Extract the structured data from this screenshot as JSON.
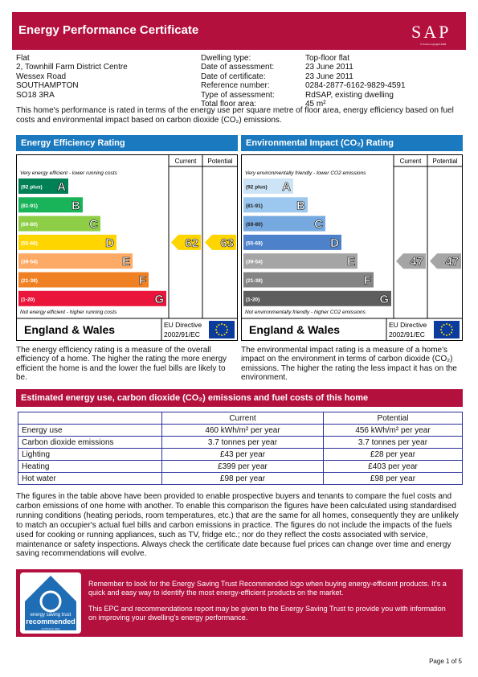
{
  "header": {
    "title": "Energy Performance Certificate",
    "logo": "SAP",
    "logo_note": "© Crown copyright 2009"
  },
  "address": [
    "Flat",
    "2, Townhill Farm District Centre",
    "Wessex Road",
    "SOUTHAMPTON",
    "SO18 3RA"
  ],
  "details": [
    {
      "label": "Dwelling type:",
      "value": "Top-floor flat"
    },
    {
      "label": "Date of assessment:",
      "value": "23 June 2011"
    },
    {
      "label": "Date of certificate:",
      "value": "23 June 2011"
    },
    {
      "label": "Reference number:",
      "value": "0284-2877-6162-9829-4591"
    },
    {
      "label": "Type of assessment:",
      "value": "RdSAP, existing dwelling"
    },
    {
      "label": "Total floor area:",
      "value": "45 m²"
    }
  ],
  "intro": "This home's performance is rated in terms of the energy use per square metre of floor area, energy efficiency based on fuel costs and environmental impact based on carbon dioxide (CO₂) emissions.",
  "ratings": [
    {
      "title": "Energy Efficiency Rating",
      "columns": [
        "Current",
        "Potential"
      ],
      "top_note": "Very energy efficient - lower running costs",
      "bottom_note": "Not energy efficient - higher running costs",
      "bands": [
        {
          "range": "(92 plus)",
          "letter": "A",
          "color": "#008054"
        },
        {
          "range": "(81-91)",
          "letter": "B",
          "color": "#19b459"
        },
        {
          "range": "(69-80)",
          "letter": "C",
          "color": "#8dce46"
        },
        {
          "range": "(55-68)",
          "letter": "D",
          "color": "#ffd500"
        },
        {
          "range": "(39-54)",
          "letter": "E",
          "color": "#fcaa65"
        },
        {
          "range": "(21-38)",
          "letter": "F",
          "color": "#ef8023"
        },
        {
          "range": "(1-20)",
          "letter": "G",
          "color": "#e9153b"
        }
      ],
      "current": 62,
      "potential": 63,
      "region": "England & Wales",
      "directive": [
        "EU Directive",
        "2002/91/EC"
      ],
      "description": "The energy efficiency rating is a measure of the overall efficiency of a home. The higher the rating the more energy efficient the home is and the lower the fuel bills are likely to be."
    },
    {
      "title": "Environmental Impact (CO₂) Rating",
      "columns": [
        "Current",
        "Potential"
      ],
      "top_note": "Very environmentally friendly - lower CO2 emissions",
      "bottom_note": "Not environmentally friendly - higher CO2 emissions",
      "bands": [
        {
          "range": "(92 plus)",
          "letter": "A",
          "color": "#cde4f6"
        },
        {
          "range": "(81-91)",
          "letter": "B",
          "color": "#9cc7ee"
        },
        {
          "range": "(69-80)",
          "letter": "C",
          "color": "#75a9e0"
        },
        {
          "range": "(55-68)",
          "letter": "D",
          "color": "#4d82cb"
        },
        {
          "range": "(39-54)",
          "letter": "E",
          "color": "#a5a5a5"
        },
        {
          "range": "(21-38)",
          "letter": "F",
          "color": "#848484"
        },
        {
          "range": "(1-20)",
          "letter": "G",
          "color": "#5e5e5e"
        }
      ],
      "current": 47,
      "potential": 47,
      "region": "England & Wales",
      "directive": [
        "EU Directive",
        "2002/91/EC"
      ],
      "description": "The environmental impact rating is a measure of a home's impact on the environment in terms of carbon dioxide (CO₂) emissions. The higher the rating the less impact it has on the environment."
    }
  ],
  "usage": {
    "title": "Estimated energy use, carbon dioxide (CO₂) emissions and fuel costs of this home",
    "columns": [
      "Current",
      "Potential"
    ],
    "rows": [
      [
        "Energy use",
        "460 kWh/m² per year",
        "456 kWh/m² per year"
      ],
      [
        "Carbon dioxide emissions",
        "3.7 tonnes per year",
        "3.7 tonnes per year"
      ],
      [
        "Lighting",
        "£43 per year",
        "£28 per year"
      ],
      [
        "Heating",
        "£399 per year",
        "£403 per year"
      ],
      [
        "Hot water",
        "£98 per year",
        "£98 per year"
      ]
    ]
  },
  "note": "The figures in the table above have been provided to enable prospective buyers and tenants to compare the fuel costs and carbon emissions of one home with another. To enable this comparison the figures have been calculated using standardised running conditions (heating periods, room temperatures, etc.) that are the same for all homes, consequently they are unlikely to match an occupier's actual fuel bills and carbon emissions in practice. The figures do not include the impacts of the fuels used for cooking or running appliances, such as TV, fridge etc.; nor do they reflect the costs associated with service, maintenance or safety inspections. Always check the certificate date because fuel prices can change over time and energy saving recommendations will evolve.",
  "trust": {
    "logo_top": "energy saving trust",
    "logo_main": "recommended",
    "logo_note": "Certification Mark",
    "paragraphs": [
      "Remember to look for the Energy Saving Trust Recommended logo when buying energy-efficient products. It's a quick and easy way to identify the most energy-efficient products on the market.",
      "This EPC and recommendations report may be given to the Energy Saving Trust to provide you with information on improving your dwelling's energy performance."
    ]
  },
  "page": "Page 1 of 5"
}
